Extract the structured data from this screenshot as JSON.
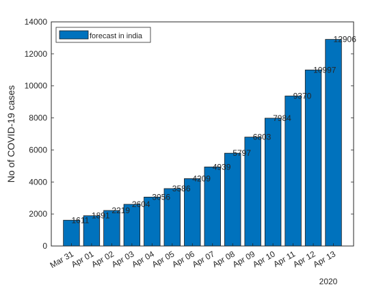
{
  "chart_data": {
    "type": "bar",
    "categories": [
      "Mar 31",
      "Apr 01",
      "Apr 02",
      "Apr 03",
      "Apr 04",
      "Apr 05",
      "Apr 06",
      "Apr 07",
      "Apr 08",
      "Apr 09",
      "Apr 10",
      "Apr 11",
      "Apr 12",
      "Apr 13"
    ],
    "values": [
      1611,
      1891,
      2219,
      2604,
      3056,
      3586,
      4209,
      4939,
      5797,
      6803,
      7984,
      9370,
      10997,
      12906
    ],
    "data_labels": [
      "1611",
      "1891",
      "2219",
      "2604",
      "3056",
      "3586",
      "4209",
      "4939",
      "5797",
      "6803",
      "7984",
      "9370",
      "10997",
      "12906"
    ],
    "series_name": "forecast in india",
    "ylabel": "No of COVID-19 cases",
    "xlabel_extra": "2020",
    "ylim": [
      0,
      14000
    ],
    "yticks": [
      0,
      2000,
      4000,
      6000,
      8000,
      10000,
      12000,
      14000
    ],
    "ytick_labels": [
      "0",
      "2000",
      "4000",
      "6000",
      "8000",
      "10000",
      "12000",
      "14000"
    ],
    "bar_color": "#0072BD",
    "legend_position": "top-left",
    "grid": false
  }
}
